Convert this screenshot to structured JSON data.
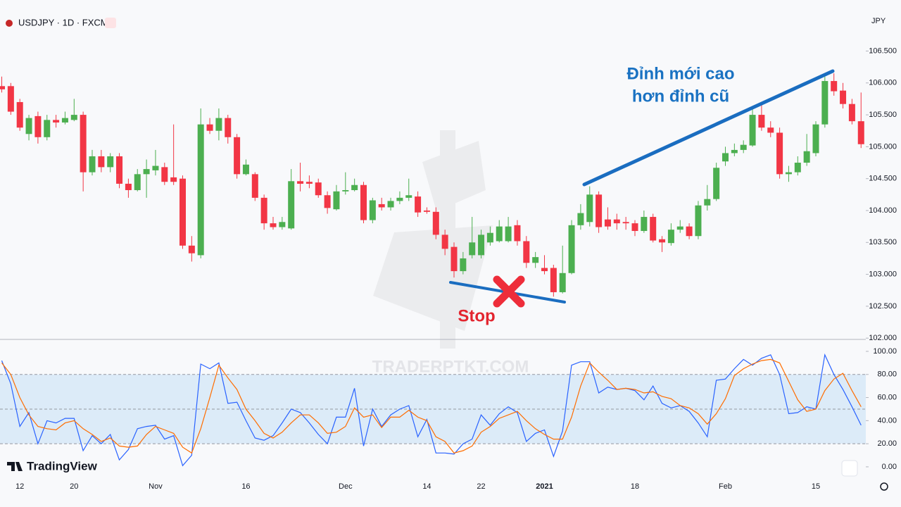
{
  "chart_data": [
    {
      "type": "candlestick",
      "title": "USDJPY · 1D · FXCM",
      "currency": "JPY",
      "brand": "TradingView",
      "watermark": "TRADERPTKT.COM",
      "annotations": [
        "Đỉnh mới cao",
        "hơn đỉnh cũ",
        "Stop"
      ],
      "up_color": "#4caf50",
      "down_color": "#f23645",
      "categories": [
        null,
        null,
        "12",
        null,
        null,
        null,
        null,
        null,
        "20",
        null,
        null,
        null,
        null,
        null,
        null,
        null,
        null,
        "Nov",
        null,
        null,
        null,
        null,
        null,
        null,
        null,
        null,
        null,
        "16",
        null,
        null,
        null,
        null,
        null,
        null,
        null,
        null,
        null,
        null,
        "Dec",
        null,
        null,
        null,
        null,
        null,
        null,
        null,
        null,
        "14",
        null,
        null,
        null,
        null,
        null,
        "22",
        null,
        null,
        null,
        null,
        null,
        null,
        "2021",
        null,
        null,
        null,
        null,
        null,
        null,
        null,
        null,
        null,
        "18",
        null,
        null,
        null,
        null,
        null,
        null,
        null,
        null,
        null,
        "Feb",
        null,
        null,
        null,
        null,
        null,
        null,
        null,
        null,
        null,
        "15",
        null,
        null,
        null,
        null,
        null
      ],
      "open": [
        105.95,
        105.95,
        105.7,
        105.2,
        105.48,
        105.15,
        105.42,
        105.38,
        105.42,
        105.5,
        104.6,
        104.85,
        104.68,
        104.85,
        104.42,
        104.32,
        104.57,
        104.63,
        104.68,
        104.52,
        104.5,
        103.45,
        103.3,
        105.35,
        105.25,
        105.45,
        105.15,
        104.57,
        104.57,
        104.2,
        103.8,
        103.74,
        103.72,
        104.46,
        104.45,
        104.44,
        104.24,
        104.02,
        104.3,
        104.32,
        104.4,
        103.85,
        104.1,
        104.05,
        104.15,
        104.2,
        104.22,
        104.0,
        103.98,
        103.62,
        103.43,
        103.05,
        103.3,
        103.3,
        103.5,
        103.52,
        103.52,
        103.77,
        103.52,
        103.18,
        103.1,
        103.1,
        102.72,
        103.02,
        103.77,
        103.82,
        104.25,
        103.86,
        103.86,
        103.82,
        103.8,
        103.68,
        103.9,
        103.55,
        103.49,
        103.7,
        103.75,
        103.6,
        104.08,
        104.18,
        104.77,
        104.9,
        104.95,
        105.02,
        105.5,
        105.3,
        105.22,
        104.57,
        104.6,
        104.75,
        104.9,
        105.35,
        106.03,
        105.88,
        105.67,
        105.4
      ],
      "high": [
        106.1,
        106.0,
        105.75,
        105.5,
        105.55,
        105.5,
        105.5,
        105.55,
        105.75,
        105.55,
        104.95,
        104.95,
        104.9,
        104.9,
        104.5,
        104.65,
        104.8,
        104.95,
        104.75,
        105.35,
        104.55,
        103.6,
        105.6,
        105.45,
        105.6,
        105.5,
        105.2,
        104.8,
        104.6,
        104.25,
        103.9,
        103.9,
        104.65,
        104.75,
        104.55,
        104.5,
        104.3,
        104.4,
        104.6,
        104.5,
        104.45,
        104.2,
        104.2,
        104.2,
        104.3,
        104.5,
        104.3,
        104.05,
        104.05,
        103.7,
        103.5,
        103.35,
        103.9,
        103.7,
        103.75,
        103.85,
        103.9,
        103.85,
        103.6,
        103.35,
        103.3,
        103.15,
        103.45,
        103.85,
        104.1,
        104.38,
        104.3,
        104.05,
        103.95,
        103.9,
        103.85,
        104.0,
        103.95,
        103.6,
        103.8,
        103.85,
        103.8,
        104.15,
        104.4,
        104.75,
        105.0,
        105.05,
        105.1,
        105.6,
        105.7,
        105.4,
        105.3,
        104.7,
        104.85,
        105.2,
        105.4,
        106.1,
        106.15,
        106.0,
        105.75,
        105.85
      ],
      "low": [
        105.85,
        105.5,
        105.25,
        105.1,
        105.05,
        105.1,
        105.3,
        105.35,
        105.4,
        104.3,
        104.55,
        104.6,
        104.6,
        104.35,
        104.2,
        104.3,
        104.2,
        104.55,
        104.4,
        104.4,
        103.4,
        103.2,
        103.25,
        105.2,
        105.1,
        105.05,
        104.5,
        104.55,
        104.15,
        103.7,
        103.7,
        103.7,
        103.7,
        104.3,
        104.35,
        104.2,
        103.95,
        104.0,
        104.25,
        104.3,
        103.8,
        103.8,
        104.0,
        104.0,
        104.1,
        104.15,
        103.9,
        103.95,
        103.55,
        103.3,
        102.95,
        103.0,
        103.25,
        103.25,
        103.45,
        103.5,
        103.5,
        103.45,
        103.1,
        103.1,
        103.0,
        102.65,
        102.7,
        103.0,
        103.7,
        103.75,
        103.65,
        103.7,
        103.7,
        103.7,
        103.6,
        103.65,
        103.5,
        103.35,
        103.45,
        103.65,
        103.55,
        103.55,
        104.0,
        104.15,
        104.7,
        104.85,
        104.9,
        105.0,
        105.25,
        105.15,
        104.5,
        104.45,
        104.55,
        104.7,
        104.85,
        105.3,
        105.8,
        105.6,
        105.35,
        104.98
      ],
      "close": [
        105.9,
        105.55,
        105.3,
        105.45,
        105.15,
        105.42,
        105.38,
        105.45,
        105.5,
        104.6,
        104.85,
        104.68,
        104.85,
        104.42,
        104.32,
        104.57,
        104.65,
        104.7,
        104.45,
        104.45,
        103.45,
        103.33,
        105.35,
        105.25,
        105.45,
        105.15,
        104.57,
        104.72,
        104.2,
        103.8,
        103.74,
        103.82,
        104.46,
        104.42,
        104.42,
        104.24,
        104.04,
        104.3,
        104.32,
        104.4,
        103.85,
        104.16,
        104.05,
        104.15,
        104.2,
        104.24,
        103.97,
        103.98,
        103.62,
        103.4,
        103.05,
        103.25,
        103.5,
        103.62,
        103.65,
        103.75,
        103.75,
        103.52,
        103.18,
        103.27,
        103.05,
        102.72,
        103.02,
        103.77,
        103.96,
        104.25,
        103.74,
        103.75,
        103.8,
        103.8,
        103.68,
        103.9,
        103.53,
        103.5,
        103.7,
        103.75,
        103.6,
        104.08,
        104.18,
        104.67,
        104.9,
        104.95,
        105.03,
        105.5,
        105.3,
        105.22,
        104.57,
        104.6,
        104.75,
        104.93,
        105.35,
        106.03,
        105.87,
        105.67,
        105.4,
        105.04
      ],
      "ylim": [
        101.98,
        107.3
      ],
      "yticks": [
        {
          "value": 102,
          "label": "102.000"
        },
        {
          "value": 102.5,
          "label": "102.500"
        },
        {
          "value": 103,
          "label": "103.000"
        },
        {
          "value": 103.5,
          "label": "103.500"
        },
        {
          "value": 104,
          "label": "104.000"
        },
        {
          "value": 104.5,
          "label": "104.500"
        },
        {
          "value": 105,
          "label": "105.000"
        },
        {
          "value": 105.5,
          "label": "105.500"
        },
        {
          "value": 106,
          "label": "106.000"
        },
        {
          "value": 106.5,
          "label": "106.500"
        }
      ]
    },
    {
      "type": "line",
      "series": [
        {
          "color": "#2962ff",
          "values": [
            92,
            72,
            35,
            47,
            20,
            40,
            38,
            42,
            42,
            14,
            27,
            20,
            28,
            6,
            15,
            33,
            35,
            36,
            24,
            27,
            1,
            10,
            89,
            85,
            90,
            55,
            56,
            40,
            25,
            23,
            27,
            38,
            50,
            47,
            38,
            28,
            20,
            43,
            43,
            68,
            18,
            50,
            35,
            45,
            50,
            53,
            26,
            41,
            12,
            12,
            11,
            20,
            24,
            45,
            36,
            46,
            52,
            47,
            22,
            29,
            32,
            9,
            31,
            88,
            91,
            91,
            64,
            69,
            67,
            68,
            66,
            58,
            70,
            55,
            51,
            53,
            48,
            38,
            26,
            75,
            76,
            85,
            93,
            88,
            94,
            97,
            80,
            46,
            47,
            52,
            50,
            97,
            80,
            67,
            52,
            36
          ]
        },
        {
          "color": "#ff6d00",
          "values": [
            90,
            80,
            60,
            45,
            35,
            33,
            32,
            38,
            40,
            33,
            28,
            22,
            25,
            18,
            17,
            18,
            28,
            35,
            32,
            29,
            17,
            12,
            33,
            60,
            88,
            77,
            67,
            50,
            40,
            29,
            25,
            30,
            38,
            45,
            45,
            38,
            29,
            30,
            35,
            51,
            43,
            45,
            34,
            43,
            43,
            49,
            43,
            40,
            26,
            22,
            12,
            14,
            18,
            30,
            35,
            42,
            45,
            48,
            40,
            33,
            28,
            24,
            24,
            43,
            70,
            90,
            82,
            75,
            67,
            68,
            67,
            64,
            65,
            61,
            59,
            53,
            51,
            46,
            37,
            46,
            59,
            79,
            85,
            89,
            92,
            93,
            90,
            74,
            58,
            48,
            50,
            66,
            76,
            81,
            66,
            52
          ]
        }
      ],
      "band": [
        20,
        80
      ],
      "midline": 50,
      "ylim": [
        -10.4,
        107.3
      ],
      "yticks": [
        {
          "value": 0,
          "label": "0.00"
        },
        {
          "value": 20,
          "label": "20.00"
        },
        {
          "value": 40,
          "label": "40.00"
        },
        {
          "value": 60,
          "label": "60.00"
        },
        {
          "value": 80,
          "label": "80.00"
        },
        {
          "value": 100,
          "label": "100.00"
        }
      ]
    }
  ]
}
